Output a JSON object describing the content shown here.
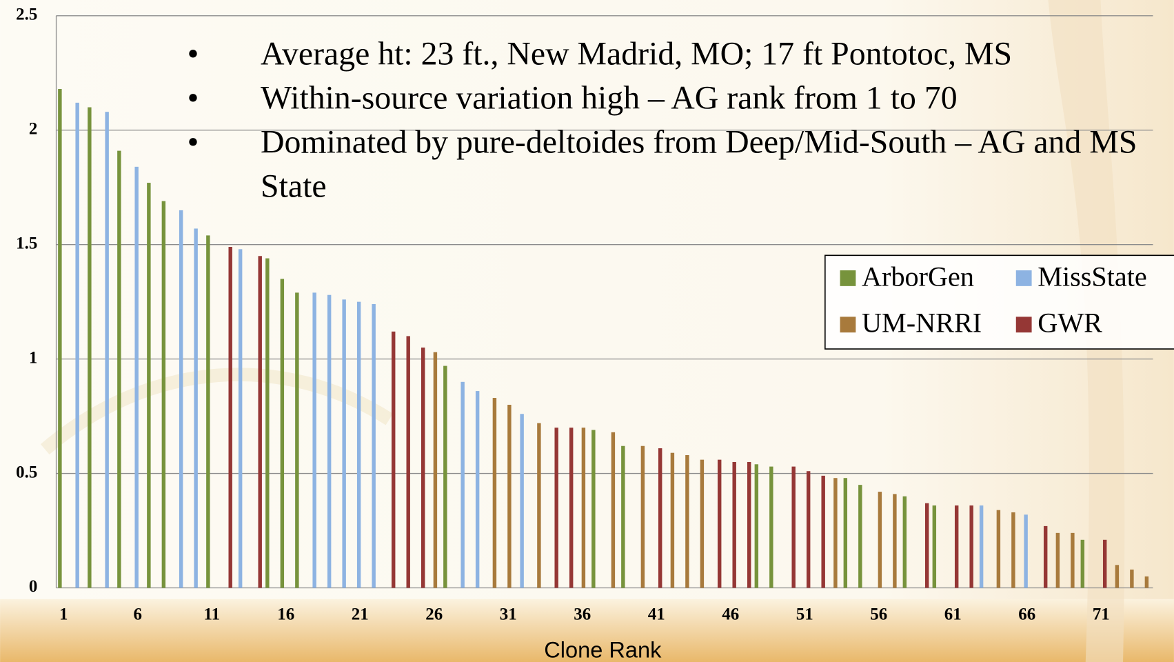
{
  "chart_data": {
    "type": "bar",
    "bullets": [
      "Average ht: 23 ft.,  New Madrid, MO;  17 ft Pontotoc, MS",
      "Within-source variation high – AG rank from 1 to 70",
      "Dominated by pure-deltoides from Deep/Mid-South – AG and MS State"
    ],
    "x_label": "Clone Rank",
    "categories": [
      "1",
      null,
      null,
      null,
      null,
      "6",
      null,
      null,
      null,
      null,
      "11",
      null,
      null,
      null,
      null,
      "16",
      null,
      null,
      null,
      null,
      "21",
      null,
      null,
      null,
      null,
      "26",
      null,
      null,
      null,
      null,
      "31",
      null,
      null,
      null,
      null,
      "36",
      null,
      null,
      null,
      null,
      "41",
      null,
      null,
      null,
      null,
      "46",
      null,
      null,
      null,
      null,
      "51",
      null,
      null,
      null,
      null,
      "56",
      null,
      null,
      null,
      null,
      "61",
      null,
      null,
      null,
      null,
      "66",
      null,
      null,
      null,
      null,
      "71",
      null,
      null,
      null
    ],
    "series": [
      {
        "name": "ArborGen",
        "color": "#77933c",
        "values": [
          2.18,
          null,
          2.1,
          null,
          1.91,
          null,
          1.77,
          1.69,
          null,
          null,
          1.54,
          null,
          null,
          null,
          1.44,
          1.35,
          1.29,
          null,
          null,
          null,
          null,
          null,
          null,
          null,
          null,
          null,
          0.97,
          null,
          null,
          null,
          null,
          null,
          null,
          null,
          null,
          null,
          0.69,
          null,
          0.62,
          null,
          null,
          null,
          null,
          null,
          null,
          null,
          null,
          0.54,
          0.53,
          null,
          null,
          null,
          null,
          0.48,
          0.45,
          null,
          null,
          0.4,
          null,
          0.36,
          null,
          null,
          null,
          null,
          null,
          null,
          null,
          null,
          null,
          0.21,
          null,
          null,
          null,
          null
        ]
      },
      {
        "name": "MissState",
        "color": "#8db3e2",
        "values": [
          null,
          2.12,
          null,
          2.08,
          null,
          1.84,
          null,
          null,
          1.65,
          1.57,
          null,
          null,
          1.48,
          null,
          null,
          null,
          null,
          1.29,
          1.28,
          1.26,
          1.25,
          1.24,
          null,
          null,
          null,
          null,
          null,
          0.9,
          0.86,
          null,
          null,
          0.76,
          null,
          null,
          null,
          null,
          null,
          null,
          null,
          null,
          null,
          null,
          null,
          null,
          null,
          null,
          null,
          null,
          null,
          null,
          null,
          null,
          null,
          null,
          null,
          null,
          null,
          null,
          null,
          null,
          null,
          null,
          0.36,
          null,
          null,
          0.32,
          null,
          null,
          null,
          null,
          null,
          null,
          null,
          null
        ]
      },
      {
        "name": "UM-NRRI",
        "color": "#a87a3c",
        "values": [
          null,
          null,
          null,
          null,
          null,
          null,
          null,
          null,
          null,
          null,
          null,
          null,
          null,
          null,
          null,
          null,
          null,
          null,
          null,
          null,
          null,
          null,
          null,
          null,
          null,
          1.03,
          null,
          null,
          null,
          0.83,
          0.8,
          null,
          0.72,
          null,
          null,
          0.7,
          null,
          0.68,
          null,
          0.62,
          null,
          0.59,
          0.58,
          0.56,
          null,
          null,
          null,
          null,
          null,
          null,
          null,
          null,
          0.48,
          null,
          null,
          0.42,
          0.41,
          null,
          null,
          null,
          null,
          null,
          null,
          0.34,
          0.33,
          null,
          null,
          0.24,
          0.24,
          null,
          null,
          0.1,
          0.08,
          0.05
        ]
      },
      {
        "name": "GWR",
        "color": "#953735",
        "values": [
          null,
          null,
          null,
          null,
          null,
          null,
          null,
          null,
          null,
          null,
          null,
          1.49,
          null,
          1.45,
          null,
          null,
          null,
          null,
          null,
          null,
          null,
          null,
          1.12,
          1.1,
          1.05,
          null,
          null,
          null,
          null,
          null,
          null,
          null,
          null,
          0.7,
          0.7,
          null,
          null,
          null,
          null,
          null,
          0.61,
          null,
          null,
          null,
          0.56,
          0.55,
          0.55,
          null,
          null,
          0.53,
          0.51,
          0.49,
          null,
          null,
          null,
          null,
          null,
          null,
          0.37,
          null,
          0.36,
          0.36,
          null,
          null,
          null,
          null,
          0.27,
          null,
          null,
          null,
          0.21,
          null,
          null,
          null
        ]
      }
    ],
    "ylim": [
      0,
      2.5
    ],
    "yticks": [
      0,
      0.5,
      1,
      1.5,
      2,
      2.5
    ],
    "grid": true,
    "legend": "right"
  }
}
